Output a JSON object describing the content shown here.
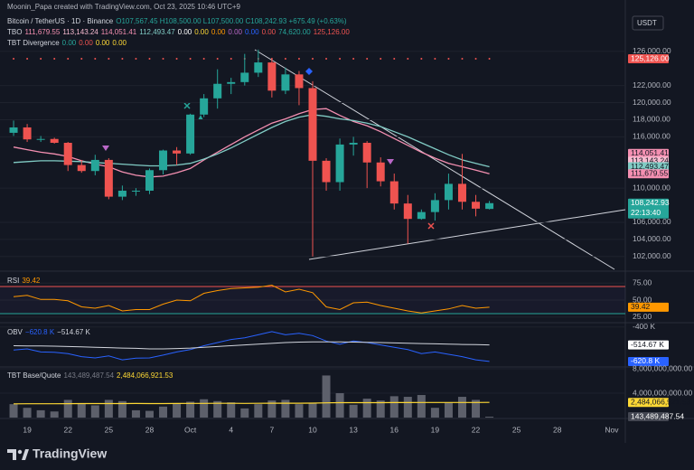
{
  "header": {
    "credit": "Moonin_Papa created with TradingView.com, Oct 23, 2025 10:46 UTC+9",
    "symbol": "Bitcoin / TetherUS · 1D · Binance",
    "ohlc": "O107,567.45 H108,500.00 L107,500.00 C108,242.93 +675.49 (+0.63%)",
    "tbo_name": "TBO",
    "tbo_values": [
      {
        "text": "111,679.55",
        "color": "#f48fb1"
      },
      {
        "text": "113,143.24",
        "color": "#f8bbd0"
      },
      {
        "text": "114,051.41",
        "color": "#f48fb1"
      },
      {
        "text": "112,493.47",
        "color": "#80cbc4"
      },
      {
        "text": "0.00",
        "color": "#ffffff"
      },
      {
        "text": "0.00",
        "color": "#fdd835"
      },
      {
        "text": "0.00",
        "color": "#ff9800"
      },
      {
        "text": "0.00",
        "color": "#ba68c8"
      },
      {
        "text": "0.00",
        "color": "#2962ff"
      },
      {
        "text": "0.00",
        "color": "#ef5350"
      },
      {
        "text": "74,620.00",
        "color": "#26a69a"
      },
      {
        "text": "125,126.00",
        "color": "#ef5350"
      }
    ],
    "div_name": "TBT Divergence",
    "div_values": [
      {
        "text": "0.00",
        "color": "#26a69a"
      },
      {
        "text": "0.00",
        "color": "#ef5350"
      },
      {
        "text": "0.00",
        "color": "#fdd835"
      },
      {
        "text": "0.00",
        "color": "#fdd835"
      }
    ]
  },
  "currency": "USDT",
  "chart_data": {
    "type": "candlestick",
    "up_color": "#26a69a",
    "down_color": "#ef5350",
    "open": [
      116470,
      117100,
      115700,
      115750,
      115300,
      112700,
      112000,
      113300,
      109000,
      109700,
      109700,
      112100,
      114400,
      114050,
      118600,
      120500,
      122200,
      122400,
      123500,
      124700,
      121400,
      123300,
      121700,
      113200,
      110700,
      115100,
      115300,
      113000,
      110800,
      108200,
      106400,
      107200,
      108600,
      110500,
      108400,
      107567.45
    ],
    "high": [
      117900,
      117500,
      116100,
      115900,
      115400,
      113300,
      113900,
      113500,
      110300,
      110000,
      112300,
      114500,
      114800,
      118700,
      121000,
      123900,
      122900,
      125700,
      126200,
      125100,
      124100,
      123700,
      122500,
      113500,
      115800,
      116000,
      115500,
      113600,
      111700,
      109200,
      107500,
      109400,
      111700,
      114000,
      109200,
      108500
    ],
    "low": [
      116100,
      115400,
      115400,
      115200,
      112000,
      111800,
      111500,
      108700,
      108600,
      109100,
      109300,
      111600,
      112700,
      113900,
      118300,
      119300,
      121000,
      122000,
      123000,
      120600,
      121000,
      119700,
      102000,
      109700,
      109700,
      113800,
      110000,
      110200,
      107500,
      103500,
      106300,
      106200,
      107500,
      107500,
      106700,
      107500
    ],
    "close": [
      117100,
      115700,
      115750,
      115300,
      112700,
      112000,
      113300,
      109000,
      109700,
      109700,
      112100,
      114400,
      114050,
      118600,
      120500,
      122200,
      122400,
      123500,
      124700,
      121400,
      123300,
      121700,
      113200,
      110700,
      115100,
      115300,
      113000,
      110800,
      108200,
      106400,
      107200,
      108600,
      110500,
      108400,
      107600,
      108242.93
    ],
    "series": [
      {
        "name": "TBO fast",
        "color": "#f48fb1",
        "values": [
          114800,
          114500,
          114200,
          114000,
          113700,
          113200,
          112800,
          112500,
          111900,
          111500,
          111300,
          111400,
          111800,
          112300,
          113300,
          114200,
          115100,
          116000,
          116800,
          117600,
          118100,
          118700,
          119200,
          119300,
          118500,
          117800,
          117300,
          116600,
          115800,
          115000,
          114200,
          113500,
          112900,
          112500,
          112100,
          111679.55
        ]
      },
      {
        "name": "TBO slow",
        "color": "#80cbc4",
        "values": [
          113000,
          113100,
          113200,
          113200,
          113150,
          113100,
          113000,
          112900,
          112800,
          112700,
          112600,
          112600,
          112700,
          112900,
          113400,
          114000,
          114700,
          115500,
          116300,
          117100,
          117800,
          118300,
          118600,
          118400,
          118100,
          117900,
          117600,
          117200,
          116600,
          116000,
          115300,
          114600,
          113900,
          113300,
          112900,
          112493.47
        ]
      }
    ],
    "xlim": [
      -1,
      45
    ],
    "xticks": [
      {
        "value": 1,
        "label": "19"
      },
      {
        "value": 4,
        "label": "22"
      },
      {
        "value": 7,
        "label": "25"
      },
      {
        "value": 10,
        "label": "28"
      },
      {
        "value": 13,
        "label": "Oct"
      },
      {
        "value": 16,
        "label": "4"
      },
      {
        "value": 19,
        "label": "7"
      },
      {
        "value": 22,
        "label": "10"
      },
      {
        "value": 25,
        "label": "13"
      },
      {
        "value": 28,
        "label": "16"
      },
      {
        "value": 31,
        "label": "19"
      },
      {
        "value": 34,
        "label": "22"
      },
      {
        "value": 37,
        "label": "25"
      },
      {
        "value": 40,
        "label": "28"
      },
      {
        "value": 44,
        "label": "Nov"
      }
    ],
    "ylim": [
      100500,
      130100
    ],
    "yticks": [
      {
        "value": 126000,
        "label": "126,000.00"
      },
      {
        "value": 122000,
        "label": "122,000.00"
      },
      {
        "value": 120000,
        "label": "120,000.00"
      },
      {
        "value": 118000,
        "label": "118,000.00"
      },
      {
        "value": 116000,
        "label": "116,000.00"
      },
      {
        "value": 110000,
        "label": "110,000.00"
      },
      {
        "value": 106000,
        "label": "106,000.00"
      },
      {
        "value": 104000,
        "label": "104,000.00"
      },
      {
        "value": 102000,
        "label": "102,000.00"
      }
    ],
    "badges": [
      {
        "value": 125126,
        "label": "125,126.00",
        "color": "#ef5350",
        "text_color": "#ffffff"
      },
      {
        "value": 114051.41,
        "label": "114,051.41",
        "color": "#f48fb1",
        "text_color": "#131722"
      },
      {
        "value": 113143.24,
        "label": "113,143.24",
        "color": "#f8bbd0",
        "text_color": "#131722"
      },
      {
        "value": 112493.47,
        "label": "112,493.47",
        "color": "#80cbc4",
        "text_color": "#131722"
      },
      {
        "value": 111679.55,
        "label": "111,679.55",
        "color": "#f48fb1",
        "text_color": "#131722"
      },
      {
        "value": 108242.93,
        "label": "108,242.93",
        "color": "#26a69a",
        "text_color": "#ffffff",
        "sub": "22:13:40"
      }
    ]
  },
  "rsi": {
    "name": "RSI",
    "legend": "39.42",
    "color": "#ff9800",
    "values": [
      55,
      57,
      51,
      51,
      49,
      40,
      38,
      42,
      34,
      36,
      36,
      44,
      50,
      49,
      60,
      64,
      67,
      68,
      69,
      72,
      62,
      66,
      61,
      40,
      36,
      46,
      47,
      42,
      38,
      34,
      31,
      34,
      37,
      42,
      38,
      39.42
    ],
    "upper_band": 70,
    "lower_band": 30,
    "ylim": [
      18,
      90
    ],
    "yticks": [
      {
        "value": 75,
        "label": "75.00"
      },
      {
        "value": 50,
        "label": "50.00"
      },
      {
        "value": 25,
        "label": "25.00"
      }
    ],
    "badges": [
      {
        "value": 39.42,
        "label": "39.42",
        "color": "#ff9800",
        "text_color": "#131722"
      }
    ]
  },
  "obv": {
    "name": "OBV",
    "legend": [
      {
        "text": "−620.8 K",
        "color": "#2962ff"
      },
      {
        "text": "−514.67 K",
        "color": "#d1d4dc"
      }
    ],
    "series": [
      {
        "name": "OBV",
        "color": "#2962ff",
        "values": [
          -547,
          -540,
          -560,
          -562,
          -570,
          -590,
          -598,
          -585,
          -610,
          -600,
          -598,
          -580,
          -560,
          -545,
          -520,
          -500,
          -480,
          -470,
          -450,
          -430,
          -450,
          -440,
          -455,
          -490,
          -510,
          -490,
          -500,
          -515,
          -530,
          -545,
          -570,
          -560,
          -575,
          -590,
          -610,
          -620.8
        ]
      },
      {
        "name": "OBV MA",
        "color": "#d1d4dc",
        "values": [
          -520,
          -521,
          -522,
          -523,
          -525,
          -527,
          -530,
          -532,
          -535,
          -537,
          -540,
          -540,
          -538,
          -535,
          -530,
          -525,
          -520,
          -515,
          -510,
          -505,
          -500,
          -497,
          -495,
          -495,
          -496,
          -497,
          -498,
          -500,
          -502,
          -504,
          -506,
          -508,
          -510,
          -512,
          -513,
          -514.67
        ]
      }
    ],
    "ylim": [
      -650,
      -390
    ],
    "yticks": [
      {
        "value": -400,
        "label": "-400 K"
      }
    ],
    "badges": [
      {
        "value": -514.67,
        "label": "-514.67 K",
        "color": "#ffffff",
        "text_color": "#131722"
      },
      {
        "value": -620.8,
        "label": "-620.8 K",
        "color": "#2962ff",
        "text_color": "#ffffff"
      }
    ]
  },
  "volume": {
    "name": "TBT Base/Quote",
    "legend": [
      {
        "text": "143,489,487.54",
        "color": "#787b86"
      },
      {
        "text": "2,484,066,921.53",
        "color": "#fdd835"
      }
    ],
    "bar_color": "#5d606b",
    "values": [
      2200000000,
      1600000000,
      1200000000,
      1000000000,
      2900000000,
      2300000000,
      2000000000,
      2900000000,
      2700000000,
      1200000000,
      1100000000,
      1800000000,
      2300000000,
      2600000000,
      3000000000,
      2700000000,
      2500000000,
      1500000000,
      2200000000,
      2800000000,
      2900000000,
      2200000000,
      2400000000,
      6900000000,
      4000000000,
      2100000000,
      3100000000,
      2800000000,
      3500000000,
      3400000000,
      3700000000,
      1600000000,
      2500000000,
      3400000000,
      2900000000,
      143489487.54
    ],
    "ma": {
      "color": "#fdd835",
      "values": [
        2250000000,
        2260000000,
        2270000000,
        2270000000,
        2280000000,
        2290000000,
        2290000000,
        2300000000,
        2300000000,
        2310000000,
        2300000000,
        2300000000,
        2310000000,
        2320000000,
        2330000000,
        2340000000,
        2340000000,
        2330000000,
        2340000000,
        2350000000,
        2360000000,
        2360000000,
        2370000000,
        2420000000,
        2440000000,
        2440000000,
        2450000000,
        2450000000,
        2460000000,
        2460000000,
        2470000000,
        2470000000,
        2470000000,
        2480000000,
        2480000000,
        2484066921.53
      ]
    },
    "ylim": [
      0,
      8000000000
    ],
    "yticks": [
      {
        "value": 8000000000,
        "label": "8,000,000,000.00"
      },
      {
        "value": 4000000000,
        "label": "4,000,000,000.00"
      }
    ],
    "badges": [
      {
        "value": 2484066921.53,
        "label": "2,484,066,921.53",
        "color": "#fdd835",
        "text_color": "#131722"
      },
      {
        "value": 143489487.54,
        "label": "143,489,487.54",
        "color": "#434651",
        "text_color": "#ffffff"
      }
    ]
  },
  "brand": "TradingView"
}
